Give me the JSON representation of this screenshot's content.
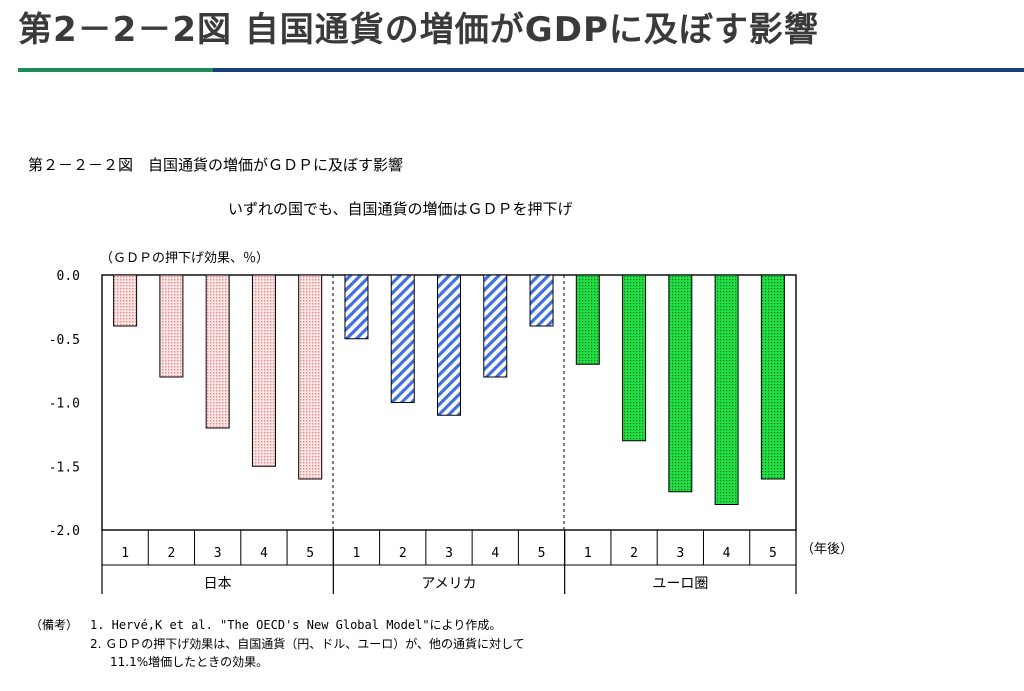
{
  "page_title": "第2－2－2図 自国通貨の増価がGDPに及ぼす影響",
  "colors": {
    "title_rule_left": "#1f8a5a",
    "title_rule_right": "#1a3f7a",
    "japan_fill": "#f4b8b8",
    "usa_fill": "#3f6fe0",
    "euro_fill": "#22dd44"
  },
  "chart_data": {
    "type": "bar",
    "title": "第２－２－２図　自国通貨の増価がＧＤＰに及ぼす影響",
    "subtitle": "いずれの国でも、自国通貨の増価はＧＤＰを押下げ",
    "ylabel": "（ＧＤＰの押下げ効果、％）",
    "xlabel": "（年後）",
    "ylim": [
      -2.0,
      0.0
    ],
    "yticks": [
      "0.0",
      "-0.5",
      "-1.0",
      "-1.5",
      "-2.0"
    ],
    "grid": false,
    "categories": [
      "1",
      "2",
      "3",
      "4",
      "5"
    ],
    "groups": [
      {
        "name": "日本",
        "values": [
          -0.4,
          -0.8,
          -1.2,
          -1.5,
          -1.6
        ]
      },
      {
        "name": "アメリカ",
        "values": [
          -0.5,
          -1.0,
          -1.1,
          -0.8,
          -0.4
        ]
      },
      {
        "name": "ユーロ圏",
        "values": [
          -0.7,
          -1.3,
          -1.7,
          -1.8,
          -1.6
        ]
      }
    ]
  },
  "notes": {
    "label": "（備考）",
    "line1": "1. Hervé,K et al. \"The OECD's New Global Model\"により作成。",
    "line2": "2. ＧＤＰの押下げ効果は、自国通貨（円、ドル、ユーロ）が、他の通貨に対して",
    "line3": "11.1%増価したときの効果。"
  }
}
